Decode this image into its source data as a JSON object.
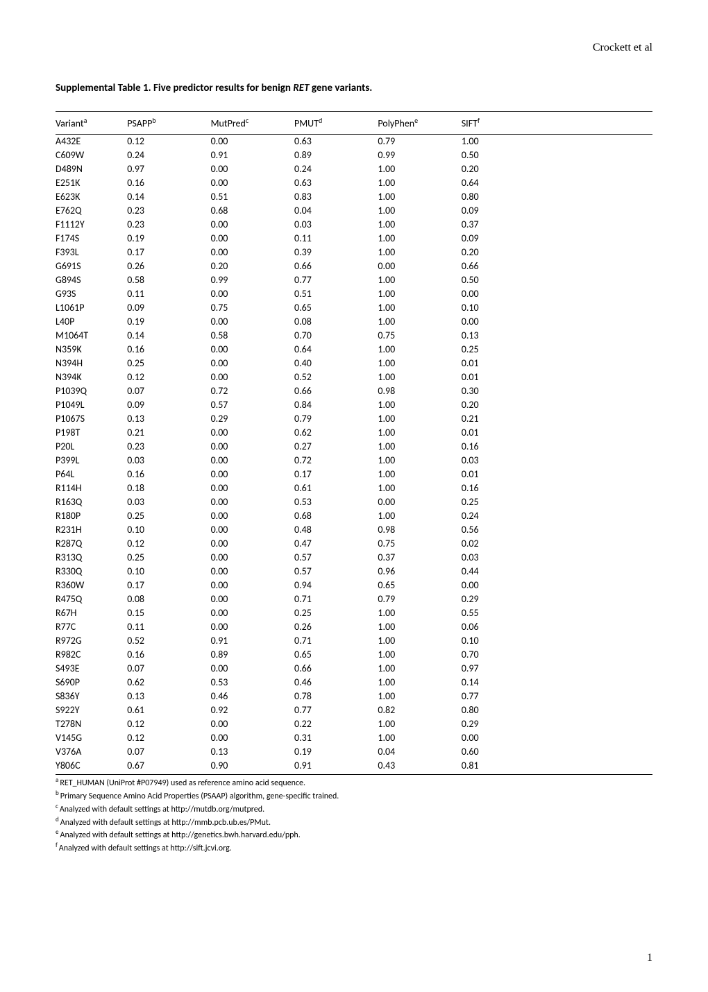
{
  "header": {
    "author": "Crockett et al"
  },
  "title": {
    "prefix": "Supplemental Table 1.  Five predictor results for benign ",
    "gene": "RET",
    "suffix": " gene variants."
  },
  "table": {
    "columns": [
      {
        "label": "Variant",
        "sup": "a"
      },
      {
        "label": "PSAPP",
        "sup": "b"
      },
      {
        "label": "MutPred",
        "sup": "c"
      },
      {
        "label": "PMUT",
        "sup": "d"
      },
      {
        "label": "PolyPhen",
        "sup": "e"
      },
      {
        "label": "SIFT",
        "sup": "f"
      }
    ],
    "rows": [
      [
        "A432E",
        "0.12",
        "0.00",
        "0.63",
        "0.79",
        "1.00"
      ],
      [
        "C609W",
        "0.24",
        "0.91",
        "0.89",
        "0.99",
        "0.50"
      ],
      [
        "D489N",
        "0.97",
        "0.00",
        "0.24",
        "1.00",
        "0.20"
      ],
      [
        "E251K",
        "0.16",
        "0.00",
        "0.63",
        "1.00",
        "0.64"
      ],
      [
        "E623K",
        "0.14",
        "0.51",
        "0.83",
        "1.00",
        "0.80"
      ],
      [
        "E762Q",
        "0.23",
        "0.68",
        "0.04",
        "1.00",
        "0.09"
      ],
      [
        "F1112Y",
        "0.23",
        "0.00",
        "0.03",
        "1.00",
        "0.37"
      ],
      [
        "F174S",
        "0.19",
        "0.00",
        "0.11",
        "1.00",
        "0.09"
      ],
      [
        "F393L",
        "0.17",
        "0.00",
        "0.39",
        "1.00",
        "0.20"
      ],
      [
        "G691S",
        "0.26",
        "0.20",
        "0.66",
        "0.00",
        "0.66"
      ],
      [
        "G894S",
        "0.58",
        "0.99",
        "0.77",
        "1.00",
        "0.50"
      ],
      [
        "G93S",
        "0.11",
        "0.00",
        "0.51",
        "1.00",
        "0.00"
      ],
      [
        "L1061P",
        "0.09",
        "0.75",
        "0.65",
        "1.00",
        "0.10"
      ],
      [
        "L40P",
        "0.19",
        "0.00",
        "0.08",
        "1.00",
        "0.00"
      ],
      [
        "M1064T",
        "0.14",
        "0.58",
        "0.70",
        "0.75",
        "0.13"
      ],
      [
        "N359K",
        "0.16",
        "0.00",
        "0.64",
        "1.00",
        "0.25"
      ],
      [
        "N394H",
        "0.25",
        "0.00",
        "0.40",
        "1.00",
        "0.01"
      ],
      [
        "N394K",
        "0.12",
        "0.00",
        "0.52",
        "1.00",
        "0.01"
      ],
      [
        "P1039Q",
        "0.07",
        "0.72",
        "0.66",
        "0.98",
        "0.30"
      ],
      [
        "P1049L",
        "0.09",
        "0.57",
        "0.84",
        "1.00",
        "0.20"
      ],
      [
        "P1067S",
        "0.13",
        "0.29",
        "0.79",
        "1.00",
        "0.21"
      ],
      [
        "P198T",
        "0.21",
        "0.00",
        "0.62",
        "1.00",
        "0.01"
      ],
      [
        "P20L",
        "0.23",
        "0.00",
        "0.27",
        "1.00",
        "0.16"
      ],
      [
        "P399L",
        "0.03",
        "0.00",
        "0.72",
        "1.00",
        "0.03"
      ],
      [
        "P64L",
        "0.16",
        "0.00",
        "0.17",
        "1.00",
        "0.01"
      ],
      [
        "R114H",
        "0.18",
        "0.00",
        "0.61",
        "1.00",
        "0.16"
      ],
      [
        "R163Q",
        "0.03",
        "0.00",
        "0.53",
        "0.00",
        "0.25"
      ],
      [
        "R180P",
        "0.25",
        "0.00",
        "0.68",
        "1.00",
        "0.24"
      ],
      [
        "R231H",
        "0.10",
        "0.00",
        "0.48",
        "0.98",
        "0.56"
      ],
      [
        "R287Q",
        "0.12",
        "0.00",
        "0.47",
        "0.75",
        "0.02"
      ],
      [
        "R313Q",
        "0.25",
        "0.00",
        "0.57",
        "0.37",
        "0.03"
      ],
      [
        "R330Q",
        "0.10",
        "0.00",
        "0.57",
        "0.96",
        "0.44"
      ],
      [
        "R360W",
        "0.17",
        "0.00",
        "0.94",
        "0.65",
        "0.00"
      ],
      [
        "R475Q",
        "0.08",
        "0.00",
        "0.71",
        "0.79",
        "0.29"
      ],
      [
        "R67H",
        "0.15",
        "0.00",
        "0.25",
        "1.00",
        "0.55"
      ],
      [
        "R77C",
        "0.11",
        "0.00",
        "0.26",
        "1.00",
        "0.06"
      ],
      [
        "R972G",
        "0.52",
        "0.91",
        "0.71",
        "1.00",
        "0.10"
      ],
      [
        "R982C",
        "0.16",
        "0.89",
        "0.65",
        "1.00",
        "0.70"
      ],
      [
        "S493E",
        "0.07",
        "0.00",
        "0.66",
        "1.00",
        "0.97"
      ],
      [
        "S690P",
        "0.62",
        "0.53",
        "0.46",
        "1.00",
        "0.14"
      ],
      [
        "S836Y",
        "0.13",
        "0.46",
        "0.78",
        "1.00",
        "0.77"
      ],
      [
        "S922Y",
        "0.61",
        "0.92",
        "0.77",
        "0.82",
        "0.80"
      ],
      [
        "T278N",
        "0.12",
        "0.00",
        "0.22",
        "1.00",
        "0.29"
      ],
      [
        "V145G",
        "0.12",
        "0.00",
        "0.31",
        "1.00",
        "0.00"
      ],
      [
        "V376A",
        "0.07",
        "0.13",
        "0.19",
        "0.04",
        "0.60"
      ],
      [
        "Y806C",
        "0.67",
        "0.90",
        "0.91",
        "0.43",
        "0.81"
      ]
    ]
  },
  "footnotes": [
    {
      "sup": "a",
      "text": "RET_HUMAN (UniProt #P07949) used as reference amino acid sequence."
    },
    {
      "sup": "b",
      "text": "Primary Sequence Amino Acid Properties (PSAAP) algorithm, gene-specific trained."
    },
    {
      "sup": "c",
      "text": " Analyzed with default settings at http://mutdb.org/mutpred."
    },
    {
      "sup": "d",
      "text": " Analyzed with default settings at http://mmb.pcb.ub.es/PMut."
    },
    {
      "sup": "e",
      "text": " Analyzed with default settings at http://genetics.bwh.harvard.edu/pph."
    },
    {
      "sup": "f",
      "text": "Analyzed with default settings at http://sift.jcvi.org."
    }
  ],
  "page_number": "1"
}
